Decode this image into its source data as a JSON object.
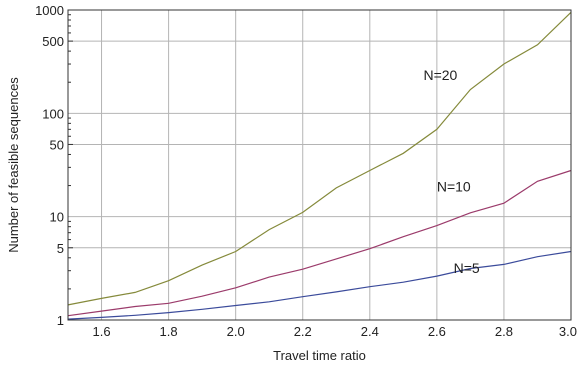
{
  "chart_data": {
    "type": "line",
    "title": "",
    "xlabel": "Travel time ratio",
    "ylabel": "Number of feasible sequences",
    "xlim": [
      1.5,
      3.0
    ],
    "ylim": [
      1,
      1000
    ],
    "yscale": "log",
    "grid": true,
    "x_ticks": [
      "1.6",
      "1.8",
      "2.0",
      "2.2",
      "2.4",
      "2.6",
      "2.8",
      "3.0"
    ],
    "x_tick_values": [
      1.6,
      1.8,
      2.0,
      2.2,
      2.4,
      2.6,
      2.8,
      3.0
    ],
    "y_ticks": [
      "1",
      "5",
      "10",
      "50",
      "100",
      "500",
      "1000"
    ],
    "y_tick_values": [
      1,
      5,
      10,
      50,
      100,
      500,
      1000
    ],
    "x": [
      1.5,
      1.6,
      1.7,
      1.8,
      1.9,
      2.0,
      2.1,
      2.2,
      2.3,
      2.4,
      2.5,
      2.6,
      2.7,
      2.8,
      2.9,
      3.0
    ],
    "series": [
      {
        "name": "N=5",
        "color": "#3b4b9b",
        "values": [
          1.02,
          1.06,
          1.11,
          1.18,
          1.27,
          1.38,
          1.5,
          1.68,
          1.87,
          2.1,
          2.32,
          2.66,
          3.15,
          3.45,
          4.1,
          4.6
        ]
      },
      {
        "name": "N=10",
        "color": "#9b3b6b",
        "values": [
          1.1,
          1.22,
          1.35,
          1.45,
          1.7,
          2.05,
          2.6,
          3.1,
          3.9,
          4.9,
          6.4,
          8.2,
          10.9,
          13.5,
          22,
          28
        ]
      },
      {
        "name": "N=20",
        "color": "#858a3b",
        "values": [
          1.4,
          1.62,
          1.85,
          2.4,
          3.4,
          4.6,
          7.5,
          11,
          19,
          28,
          41,
          70,
          170,
          300,
          460,
          950
        ]
      }
    ]
  }
}
